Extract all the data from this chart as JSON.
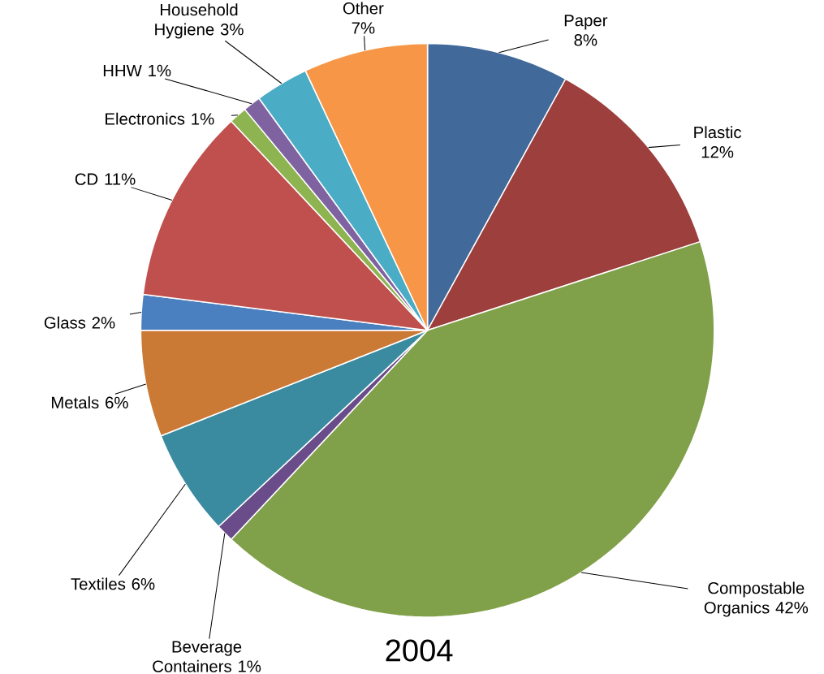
{
  "chart_data": {
    "type": "pie",
    "title": "2004",
    "categories": [
      "Paper",
      "Plastic",
      "Compostable Organics",
      "Beverage Containers",
      "Textiles",
      "Metals",
      "Glass",
      "CD",
      "Electronics",
      "HHW",
      "Household Hygiene",
      "Other"
    ],
    "values": [
      8,
      12,
      42,
      1,
      6,
      6,
      2,
      11,
      1,
      1,
      3,
      7
    ],
    "value_labels": [
      "8%",
      "12%",
      "42%",
      "1%",
      "6%",
      "6%",
      "2%",
      "11%",
      "1%",
      "1%",
      "3%",
      "7%"
    ],
    "colors": [
      "#41699a",
      "#9c3f3d",
      "#80a04a",
      "#6b4c8a",
      "#3b8ba0",
      "#cb7a36",
      "#4a7fc0",
      "#c0504d",
      "#8db451",
      "#7f62a0",
      "#4bacc6",
      "#f79646"
    ]
  }
}
